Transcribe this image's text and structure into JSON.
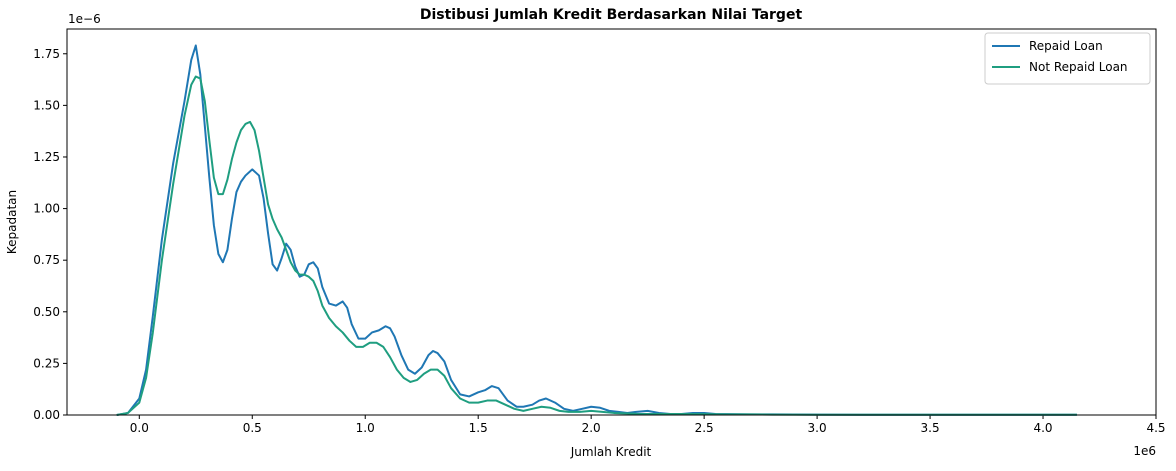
{
  "chart_data": {
    "type": "line",
    "title": "Distibusi Jumlah Kredit Berdasarkan Nilai Target",
    "xlabel": "Jumlah Kredit",
    "ylabel": "Kepadatan",
    "x_offset_label": "1e6",
    "y_offset_label": "1e−6",
    "xlim": [
      -0.32,
      4.5
    ],
    "ylim": [
      0,
      1.87
    ],
    "x_ticks": [
      0.0,
      0.5,
      1.0,
      1.5,
      2.0,
      2.5,
      3.0,
      3.5,
      4.0,
      4.5
    ],
    "x_tick_labels": [
      "0.0",
      "0.5",
      "1.0",
      "1.5",
      "2.0",
      "2.5",
      "3.0",
      "3.5",
      "4.0",
      "4.5"
    ],
    "y_ticks": [
      0.0,
      0.25,
      0.5,
      0.75,
      1.0,
      1.25,
      1.5,
      1.75
    ],
    "y_tick_labels": [
      "0.00",
      "0.25",
      "0.50",
      "0.75",
      "1.00",
      "1.25",
      "1.50",
      "1.75"
    ],
    "grid": false,
    "legend_position": "top-right",
    "series": [
      {
        "name": "Repaid Loan",
        "color": "#1f77b4",
        "x": [
          -0.1,
          -0.05,
          0.0,
          0.03,
          0.06,
          0.1,
          0.15,
          0.2,
          0.23,
          0.25,
          0.27,
          0.29,
          0.31,
          0.33,
          0.35,
          0.37,
          0.39,
          0.41,
          0.43,
          0.45,
          0.47,
          0.5,
          0.53,
          0.55,
          0.57,
          0.59,
          0.61,
          0.63,
          0.65,
          0.67,
          0.69,
          0.71,
          0.73,
          0.75,
          0.77,
          0.79,
          0.81,
          0.84,
          0.87,
          0.9,
          0.92,
          0.94,
          0.97,
          1.0,
          1.03,
          1.06,
          1.09,
          1.11,
          1.13,
          1.16,
          1.19,
          1.22,
          1.25,
          1.28,
          1.3,
          1.32,
          1.35,
          1.38,
          1.42,
          1.46,
          1.5,
          1.53,
          1.56,
          1.59,
          1.63,
          1.67,
          1.7,
          1.74,
          1.77,
          1.8,
          1.84,
          1.88,
          1.92,
          1.96,
          2.0,
          2.04,
          2.08,
          2.12,
          2.16,
          2.2,
          2.25,
          2.3,
          2.35,
          2.4,
          2.45,
          2.5,
          2.55,
          2.6,
          2.7,
          2.8,
          3.0,
          3.2,
          3.4,
          3.6,
          3.8,
          4.0,
          4.15
        ],
        "y": [
          0.0,
          0.01,
          0.08,
          0.22,
          0.48,
          0.85,
          1.22,
          1.52,
          1.72,
          1.79,
          1.65,
          1.4,
          1.15,
          0.92,
          0.78,
          0.74,
          0.8,
          0.95,
          1.08,
          1.13,
          1.16,
          1.19,
          1.16,
          1.05,
          0.88,
          0.73,
          0.7,
          0.76,
          0.83,
          0.8,
          0.72,
          0.67,
          0.68,
          0.73,
          0.74,
          0.71,
          0.62,
          0.54,
          0.53,
          0.55,
          0.52,
          0.44,
          0.37,
          0.37,
          0.4,
          0.41,
          0.43,
          0.42,
          0.38,
          0.29,
          0.22,
          0.2,
          0.23,
          0.29,
          0.31,
          0.3,
          0.26,
          0.17,
          0.1,
          0.09,
          0.11,
          0.12,
          0.14,
          0.13,
          0.07,
          0.04,
          0.04,
          0.05,
          0.07,
          0.08,
          0.06,
          0.03,
          0.02,
          0.03,
          0.04,
          0.035,
          0.02,
          0.015,
          0.01,
          0.015,
          0.02,
          0.01,
          0.005,
          0.005,
          0.01,
          0.01,
          0.005,
          0.004,
          0.003,
          0.003,
          0.002,
          0.0015,
          0.001,
          0.001,
          0.001,
          0.001,
          0.001
        ]
      },
      {
        "name": "Not Repaid Loan",
        "color": "#1f9e80",
        "x": [
          -0.1,
          -0.05,
          0.0,
          0.03,
          0.06,
          0.1,
          0.15,
          0.2,
          0.23,
          0.25,
          0.27,
          0.29,
          0.31,
          0.33,
          0.35,
          0.37,
          0.39,
          0.41,
          0.43,
          0.45,
          0.47,
          0.49,
          0.51,
          0.53,
          0.55,
          0.57,
          0.59,
          0.61,
          0.63,
          0.65,
          0.67,
          0.69,
          0.71,
          0.73,
          0.75,
          0.77,
          0.79,
          0.81,
          0.84,
          0.87,
          0.9,
          0.93,
          0.96,
          0.99,
          1.02,
          1.05,
          1.08,
          1.11,
          1.14,
          1.17,
          1.2,
          1.23,
          1.26,
          1.29,
          1.32,
          1.35,
          1.38,
          1.42,
          1.46,
          1.5,
          1.54,
          1.58,
          1.62,
          1.66,
          1.7,
          1.74,
          1.78,
          1.82,
          1.86,
          1.9,
          1.95,
          2.0,
          2.05,
          2.1,
          2.15,
          2.2,
          2.3,
          2.4,
          2.5,
          2.6,
          2.7,
          2.8,
          3.0,
          3.2,
          3.4,
          3.6,
          3.8,
          4.0,
          4.15
        ],
        "y": [
          0.0,
          0.01,
          0.06,
          0.18,
          0.4,
          0.75,
          1.12,
          1.45,
          1.6,
          1.64,
          1.63,
          1.52,
          1.33,
          1.15,
          1.07,
          1.07,
          1.14,
          1.24,
          1.32,
          1.38,
          1.41,
          1.42,
          1.38,
          1.28,
          1.15,
          1.02,
          0.95,
          0.9,
          0.86,
          0.8,
          0.74,
          0.7,
          0.68,
          0.68,
          0.67,
          0.65,
          0.6,
          0.53,
          0.47,
          0.43,
          0.4,
          0.36,
          0.33,
          0.33,
          0.35,
          0.35,
          0.33,
          0.28,
          0.22,
          0.18,
          0.16,
          0.17,
          0.2,
          0.22,
          0.22,
          0.19,
          0.13,
          0.08,
          0.06,
          0.06,
          0.07,
          0.07,
          0.05,
          0.03,
          0.02,
          0.03,
          0.04,
          0.035,
          0.02,
          0.015,
          0.015,
          0.02,
          0.015,
          0.01,
          0.008,
          0.006,
          0.005,
          0.005,
          0.004,
          0.003,
          0.003,
          0.002,
          0.0015,
          0.001,
          0.001,
          0.001,
          0.001,
          0.001,
          0.001
        ]
      }
    ]
  }
}
